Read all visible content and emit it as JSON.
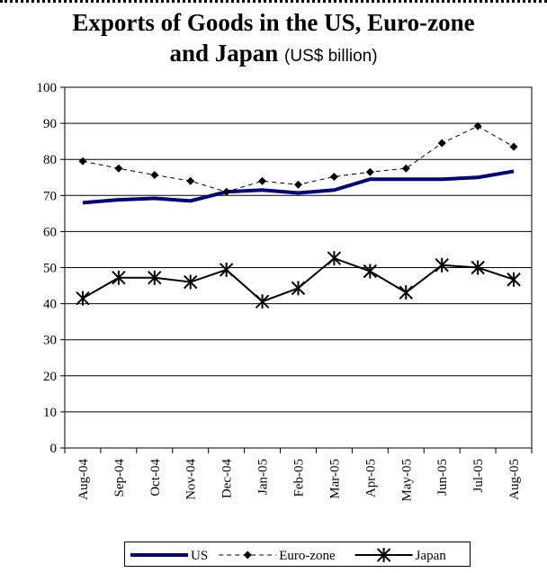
{
  "chart_data": {
    "type": "line",
    "title": "Exports of Goods in the US, Euro-zone",
    "title_line2": "and Japan",
    "subtitle": "(US$ billion)",
    "categories": [
      "Aug-04",
      "Sep-04",
      "Oct-04",
      "Nov-04",
      "Dec-04",
      "Jan-05",
      "Feb-05",
      "Mar-05",
      "Apr-05",
      "May-05",
      "Jun-05",
      "Jul-05",
      "Aug-05"
    ],
    "ylim": [
      0,
      100
    ],
    "yticks": [
      0,
      10,
      20,
      30,
      40,
      50,
      60,
      70,
      80,
      90,
      100
    ],
    "grid": true,
    "legend_position": "bottom",
    "series": [
      {
        "name": "US",
        "color": "#00007a",
        "style": "solid-thick",
        "values": [
          68.0,
          68.8,
          69.2,
          68.5,
          71.0,
          71.5,
          70.7,
          71.5,
          74.5,
          74.5,
          74.5,
          75.0,
          76.7
        ]
      },
      {
        "name": "Euro-zone",
        "color": "#000000",
        "style": "dashed-diamond",
        "values": [
          79.5,
          77.5,
          75.7,
          74.0,
          71.0,
          74.0,
          73.0,
          75.2,
          76.5,
          77.5,
          84.5,
          89.2,
          83.5
        ]
      },
      {
        "name": "Japan",
        "color": "#000000",
        "style": "solid-asterisk",
        "values": [
          41.5,
          47.2,
          47.2,
          46.0,
          49.4,
          40.6,
          44.3,
          52.6,
          49.0,
          43.1,
          50.7,
          50.0,
          46.7
        ]
      }
    ]
  }
}
